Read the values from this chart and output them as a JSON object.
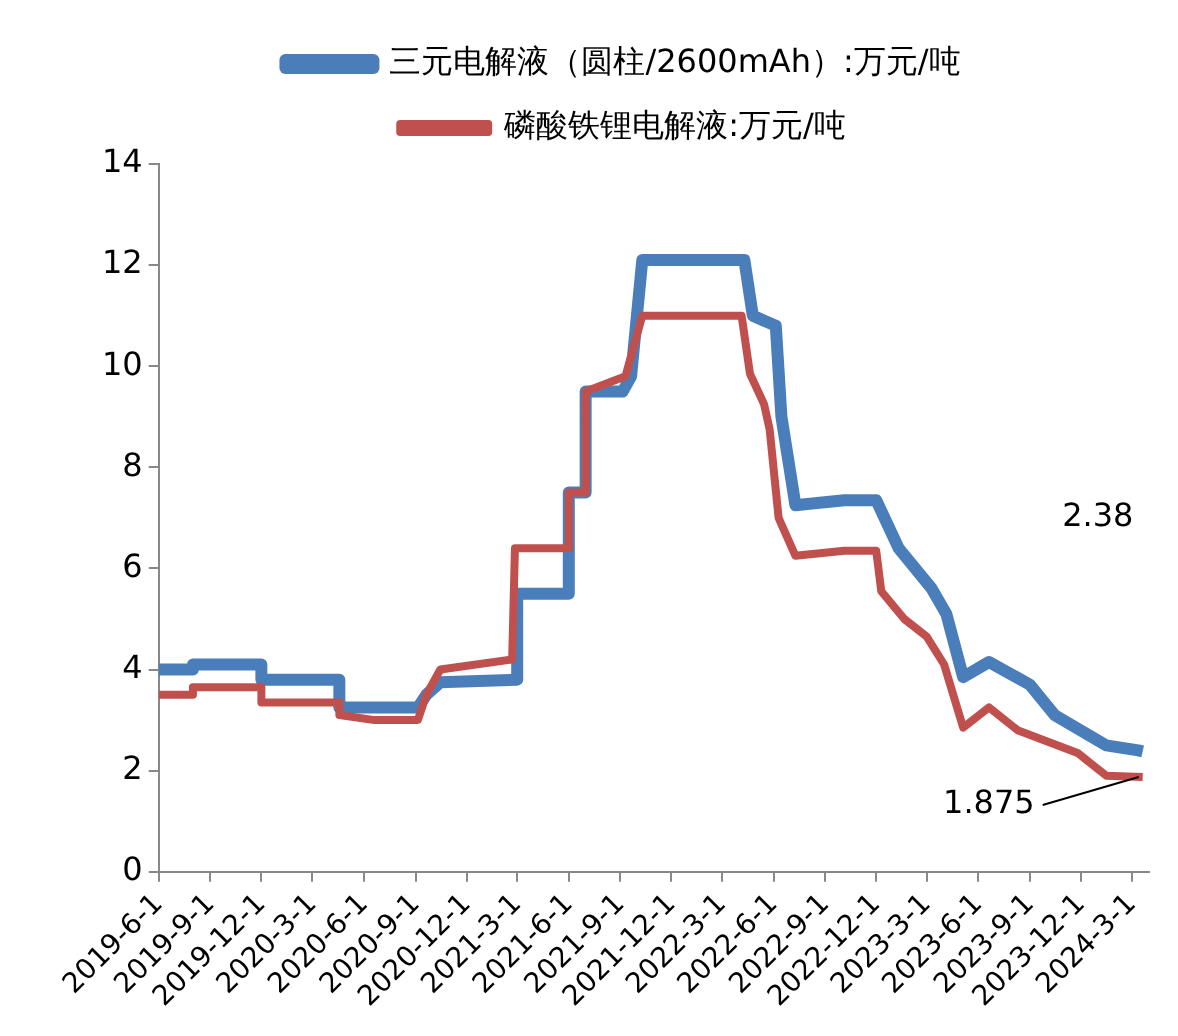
{
  "chart_data": {
    "type": "line",
    "legend": "top",
    "grid": false,
    "marker": "none",
    "line_style": "solid",
    "xlim": [
      "2019-06-01",
      "2024-04-01"
    ],
    "xticks": [
      {
        "value": "2019-06-01",
        "label": "2019-6-1"
      },
      {
        "value": "2019-09-01",
        "label": "2019-9-1"
      },
      {
        "value": "2019-12-01",
        "label": "2019-12-1"
      },
      {
        "value": "2020-03-01",
        "label": "2020-3-1"
      },
      {
        "value": "2020-06-01",
        "label": "2020-6-1"
      },
      {
        "value": "2020-09-01",
        "label": "2020-9-1"
      },
      {
        "value": "2020-12-01",
        "label": "2020-12-1"
      },
      {
        "value": "2021-03-01",
        "label": "2021-3-1"
      },
      {
        "value": "2021-06-01",
        "label": "2021-6-1"
      },
      {
        "value": "2021-09-01",
        "label": "2021-9-1"
      },
      {
        "value": "2021-12-01",
        "label": "2021-12-1"
      },
      {
        "value": "2022-03-01",
        "label": "2022-3-1"
      },
      {
        "value": "2022-06-01",
        "label": "2022-6-1"
      },
      {
        "value": "2022-09-01",
        "label": "2022-9-1"
      },
      {
        "value": "2022-12-01",
        "label": "2022-12-1"
      },
      {
        "value": "2023-03-01",
        "label": "2023-3-1"
      },
      {
        "value": "2023-06-01",
        "label": "2023-6-1"
      },
      {
        "value": "2023-09-01",
        "label": "2023-9-1"
      },
      {
        "value": "2023-12-01",
        "label": "2023-12-1"
      },
      {
        "value": "2024-03-01",
        "label": "2024-3-1"
      }
    ],
    "ylim": [
      0,
      14
    ],
    "yticks": [
      0,
      2,
      4,
      6,
      8,
      10,
      12,
      14
    ],
    "annotations": [
      "2.38",
      {
        "text": "1.875",
        "x": "2024-03-20",
        "y": 1.875
      }
    ],
    "series": [
      {
        "name": "三元电解液（圆柱/2600mAh）:万元/吨",
        "color": "#4a7ebb",
        "x": [
          "2019-06-01",
          "2019-08-01",
          "2019-08-01",
          "2019-12-01",
          "2019-12-01",
          "2020-04-18",
          "2020-04-18",
          "2020-09-05",
          "2020-09-20",
          "2020-10-15",
          "2021-03-01",
          "2021-03-01",
          "2021-06-01",
          "2021-06-01",
          "2021-07-01",
          "2021-07-01",
          "2021-09-05",
          "2021-09-20",
          "2021-10-10",
          "2022-04-10",
          "2022-04-25",
          "2022-06-05",
          "2022-06-15",
          "2022-07-10",
          "2022-10-05",
          "2022-12-01",
          "2023-01-10",
          "2023-03-10",
          "2023-04-05",
          "2023-05-05",
          "2023-06-20",
          "2023-09-01",
          "2023-10-15",
          "2024-01-15",
          "2024-03-12",
          "2024-03-20"
        ],
        "values": [
          4.0,
          4.0,
          4.1,
          4.1,
          3.8,
          3.8,
          3.25,
          3.25,
          3.5,
          3.75,
          3.8,
          5.5,
          5.5,
          7.5,
          7.5,
          9.5,
          9.5,
          9.8,
          12.1,
          12.1,
          11.0,
          10.8,
          9.0,
          7.25,
          7.35,
          7.35,
          6.4,
          5.6,
          5.1,
          3.85,
          4.15,
          3.7,
          3.1,
          2.5,
          2.4,
          2.38
        ]
      },
      {
        "name": "磷酸铁锂电解液:万元/吨",
        "color": "#c0504d",
        "x": [
          "2019-06-01",
          "2019-08-01",
          "2019-08-01",
          "2019-12-01",
          "2019-12-01",
          "2020-04-18",
          "2020-04-18",
          "2020-06-20",
          "2020-09-05",
          "2020-09-20",
          "2020-10-15",
          "2021-02-20",
          "2021-02-25",
          "2021-06-01",
          "2021-06-01",
          "2021-07-01",
          "2021-07-01",
          "2021-09-10",
          "2021-10-10",
          "2022-04-05",
          "2022-04-20",
          "2022-05-15",
          "2022-05-25",
          "2022-06-10",
          "2022-07-10",
          "2022-10-05",
          "2022-12-01",
          "2022-12-10",
          "2023-01-20",
          "2023-03-01",
          "2023-04-01",
          "2023-05-05",
          "2023-06-20",
          "2023-08-10",
          "2023-11-25",
          "2024-01-15",
          "2024-03-20"
        ],
        "values": [
          3.5,
          3.5,
          3.65,
          3.65,
          3.35,
          3.35,
          3.1,
          3.0,
          3.0,
          3.5,
          4.0,
          4.2,
          6.4,
          6.4,
          7.5,
          7.5,
          9.5,
          9.8,
          11.0,
          11.0,
          9.85,
          9.25,
          8.75,
          7.0,
          6.25,
          6.35,
          6.35,
          5.55,
          5.0,
          4.65,
          4.1,
          2.85,
          3.25,
          2.8,
          2.35,
          1.9,
          1.875
        ]
      }
    ]
  }
}
